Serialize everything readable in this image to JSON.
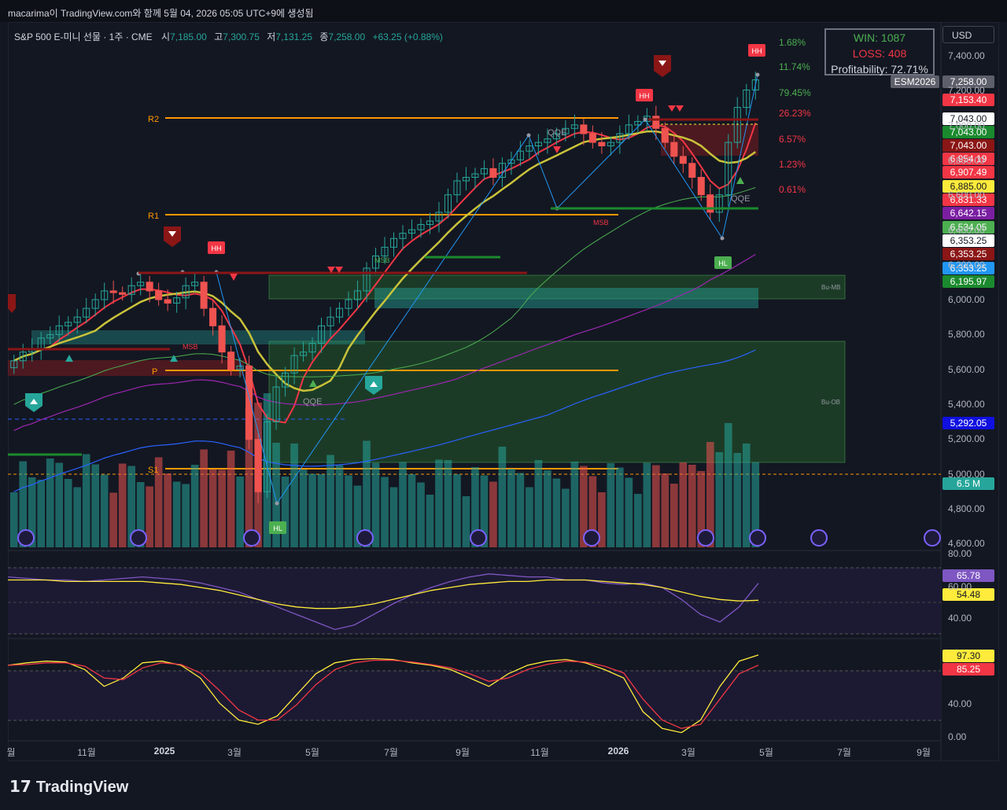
{
  "header": {
    "caption": "macarima이 TradingView.com와 함께 5월 04, 2026 05:05 UTC+9에 생성됨"
  },
  "legend": {
    "symbol": "S&P 500 E-미니 선물 · 1주 · CME",
    "open_label": "시",
    "open": "7,185.00",
    "high_label": "고",
    "high": "7,300.75",
    "low_label": "저",
    "low": "7,131.25",
    "close_label": "종",
    "close": "7,258.00",
    "change": "+63.25 (+0.88%)"
  },
  "currency": "USD",
  "stats_box": {
    "win": "WIN: 1087",
    "loss": "LOSS: 408",
    "profitability": "Profitability: 72.71%"
  },
  "percent_labels": [
    {
      "text": "1.68%",
      "color": "#4caf50"
    },
    {
      "text": "11.74%",
      "color": "#4caf50"
    },
    {
      "text": "79.45%",
      "color": "#4caf50"
    },
    {
      "text": "26.23%",
      "color": "#f23645"
    },
    {
      "text": "6.57%",
      "color": "#f23645"
    },
    {
      "text": "1.23%",
      "color": "#f23645"
    },
    {
      "text": "0.61%",
      "color": "#f23645"
    }
  ],
  "price_labels": [
    {
      "text": "ESM2026",
      "bg": "#5d606b",
      "fg": "#ffffff"
    },
    {
      "text": "7,258.00",
      "bg": "#5d606b",
      "fg": "#ffffff"
    },
    {
      "text": "7,153.40",
      "bg": "#f23645",
      "fg": "#ffffff"
    },
    {
      "text": "7,043.00",
      "bg": "#ffffff",
      "fg": "#131722"
    },
    {
      "text": "7,043.00",
      "bg": "#1b8a2e",
      "fg": "#ffffff"
    },
    {
      "text": "7,043.00",
      "bg": "#8b1616",
      "fg": "#ffffff"
    },
    {
      "text": "6,954.19",
      "bg": "#f23645",
      "fg": "#ffffff"
    },
    {
      "text": "6,907.49",
      "bg": "#f23645",
      "fg": "#ffffff"
    },
    {
      "text": "6,885.00",
      "bg": "#ffeb3b",
      "fg": "#131722"
    },
    {
      "text": "6,831.33",
      "bg": "#f23645",
      "fg": "#ffffff"
    },
    {
      "text": "6,642.15",
      "bg": "#7b1fa2",
      "fg": "#ffffff"
    },
    {
      "text": "6,534.05",
      "bg": "#4caf50",
      "fg": "#ffffff"
    },
    {
      "text": "6,353.25",
      "bg": "#ffffff",
      "fg": "#131722"
    },
    {
      "text": "6,353.25",
      "bg": "#8b1616",
      "fg": "#ffffff"
    },
    {
      "text": "6,353.25",
      "bg": "#2196f3",
      "fg": "#ffffff"
    },
    {
      "text": "6,195.97",
      "bg": "#1b8a2e",
      "fg": "#ffffff"
    },
    {
      "text": "5,292.05",
      "bg": "#1010e0",
      "fg": "#ffffff"
    },
    {
      "text": "6.5 M",
      "bg": "#26a69a",
      "fg": "#ffffff"
    },
    {
      "text": "65.78",
      "bg": "#7e57c2",
      "fg": "#ffffff"
    },
    {
      "text": "54.48",
      "bg": "#ffeb3b",
      "fg": "#131722"
    },
    {
      "text": "97.30",
      "bg": "#ffeb3b",
      "fg": "#131722"
    },
    {
      "text": "85.25",
      "bg": "#f23645",
      "fg": "#ffffff"
    }
  ],
  "annotations": {
    "r2": "R2",
    "r1": "R1",
    "p": "P",
    "s1": "S1",
    "hh": "HH",
    "hl": "HL",
    "msb": "MSB",
    "qqe": "QQE",
    "bu_mb": "Bu-MB",
    "bu_ob": "Bu-OB"
  },
  "chart_data": [
    {
      "type": "candlestick",
      "title": "",
      "interval": "1주",
      "y_axis_ticks": [
        "7,400.00",
        "7,200.00",
        "7,000.00",
        "6,800.00",
        "6,600.00",
        "6,400.00",
        "6,200.00",
        "6,000.00",
        "5,800.00",
        "5,600.00",
        "5,400.00",
        "5,200.00",
        "5,000.00",
        "4,800.00",
        "4,600.00"
      ],
      "ylim": [
        4600,
        7450
      ],
      "x_axis_ticks": [
        "월",
        "11월",
        "2025",
        "3월",
        "5월",
        "7월",
        "9월",
        "11월",
        "2026",
        "3월",
        "5월",
        "7월",
        "9월"
      ],
      "approx_weekly_closes": [
        5650,
        5700,
        5720,
        5780,
        5800,
        5850,
        5870,
        5900,
        5950,
        6000,
        6050,
        6040,
        6030,
        6080,
        6100,
        6050,
        6000,
        5980,
        6010,
        6080,
        6100,
        5950,
        5850,
        5700,
        5600,
        5620,
        5200,
        4900,
        5300,
        5500,
        5580,
        5680,
        5700,
        5750,
        5850,
        5900,
        5950,
        6000,
        6050,
        6180,
        6250,
        6300,
        6350,
        6380,
        6400,
        6430,
        6450,
        6500,
        6600,
        6680,
        6700,
        6720,
        6750,
        6700,
        6780,
        6800,
        6850,
        6880,
        6900,
        6920,
        6950,
        6980,
        7000,
        6950,
        6900,
        6880,
        6900,
        6950,
        7000,
        7020,
        7050,
        6980,
        6900,
        6820,
        6780,
        6700,
        6600,
        6500,
        6600,
        6900,
        7100,
        7200,
        7258
      ],
      "levels": {
        "R2": 7060,
        "R1": 6530,
        "P": 5670,
        "S1": 5100
      },
      "volume_last": "6.5 M"
    },
    {
      "type": "line",
      "title": "",
      "y_axis_ticks": [
        "80.00",
        "60.00",
        "40.00"
      ],
      "ylim": [
        30,
        85
      ],
      "series": [
        {
          "values": [
            70,
            69,
            68,
            68,
            67,
            68,
            69,
            70,
            69,
            68,
            66,
            63,
            60,
            55,
            50,
            45,
            40,
            35,
            38,
            45,
            52,
            58,
            63,
            67,
            70,
            72,
            71,
            70,
            70,
            68,
            68,
            66,
            65,
            66,
            63,
            55,
            45,
            40,
            50,
            65.78
          ]
        },
        {
          "values": [
            68,
            68,
            68,
            67,
            67,
            67,
            67,
            67,
            66,
            65,
            63,
            61,
            58,
            55,
            52,
            50,
            49,
            49,
            50,
            52,
            55,
            58,
            61,
            63,
            65,
            66,
            67,
            67,
            68,
            68,
            68,
            67,
            66,
            65,
            63,
            60,
            57,
            55,
            54,
            54.48
          ]
        }
      ]
    },
    {
      "type": "line",
      "title": "",
      "y_axis_ticks": [
        "40.00",
        "0.00"
      ],
      "ylim": [
        0,
        100
      ],
      "series": [
        {
          "values": [
            85,
            88,
            90,
            89,
            80,
            60,
            70,
            88,
            90,
            85,
            70,
            40,
            20,
            15,
            25,
            50,
            75,
            88,
            92,
            93,
            92,
            88,
            85,
            80,
            70,
            60,
            75,
            85,
            90,
            92,
            88,
            80,
            70,
            30,
            10,
            5,
            20,
            60,
            90,
            97.3
          ]
        },
        {
          "values": [
            85,
            86,
            88,
            88,
            84,
            70,
            68,
            82,
            88,
            86,
            76,
            55,
            32,
            20,
            20,
            38,
            62,
            80,
            88,
            91,
            91,
            89,
            86,
            82,
            75,
            66,
            70,
            80,
            86,
            90,
            89,
            84,
            76,
            45,
            20,
            10,
            15,
            45,
            75,
            85.25
          ]
        }
      ]
    }
  ]
}
